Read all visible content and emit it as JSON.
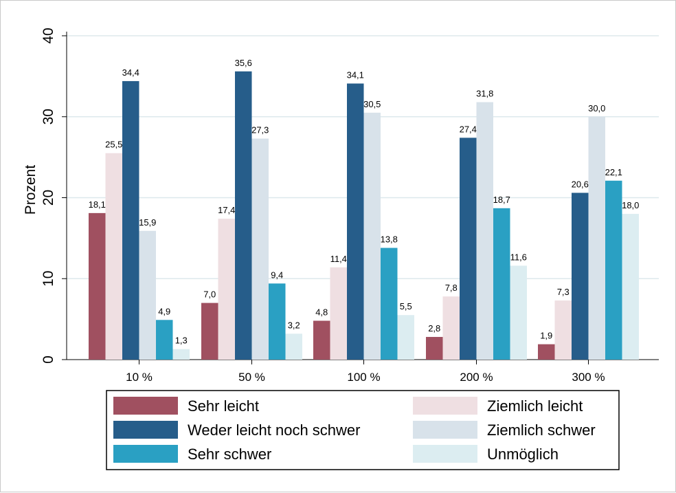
{
  "chart_data": {
    "type": "bar",
    "title": "",
    "xlabel": "",
    "ylabel": "Prozent",
    "ylim": [
      0,
      40
    ],
    "yticks": [
      "0",
      "10",
      "20",
      "30",
      "40"
    ],
    "ytick_values": [
      0,
      10,
      20,
      30,
      40
    ],
    "grid": true,
    "legend_position": "bottom",
    "categories": [
      "10 %",
      "50 %",
      "100 %",
      "200 %",
      "300 %"
    ],
    "series": [
      {
        "name": "Sehr leicht",
        "color": "#a05060",
        "values": [
          18.1,
          7.0,
          4.8,
          2.8,
          1.9
        ],
        "labels": [
          "18,1",
          "7,0",
          "4,8",
          "2,8",
          "1,9"
        ]
      },
      {
        "name": "Ziemlich leicht",
        "color": "#efdfe2",
        "values": [
          25.5,
          17.4,
          11.4,
          7.8,
          7.3
        ],
        "labels": [
          "25,5",
          "17,4",
          "11,4",
          "7,8",
          "7,3"
        ]
      },
      {
        "name": "Weder leicht noch schwer",
        "color": "#265d8a",
        "values": [
          34.4,
          35.6,
          34.1,
          27.4,
          20.6
        ],
        "labels": [
          "34,4",
          "35,6",
          "34,1",
          "27,4",
          "20,6"
        ]
      },
      {
        "name": "Ziemlich schwer",
        "color": "#d8e2ea",
        "values": [
          15.9,
          27.3,
          30.5,
          31.8,
          30.0
        ],
        "labels": [
          "15,9",
          "27,3",
          "30,5",
          "31,8",
          "30,0"
        ]
      },
      {
        "name": "Sehr schwer",
        "color": "#2aa0c3",
        "values": [
          4.9,
          9.4,
          13.8,
          18.7,
          22.1
        ],
        "labels": [
          "4,9",
          "9,4",
          "13,8",
          "18,7",
          "22,1"
        ]
      },
      {
        "name": "Unmöglich",
        "color": "#dcedf1",
        "values": [
          1.3,
          3.2,
          5.5,
          11.6,
          18.0
        ],
        "labels": [
          "1,3",
          "3,2",
          "5,5",
          "11,6",
          "18,0"
        ]
      }
    ]
  }
}
